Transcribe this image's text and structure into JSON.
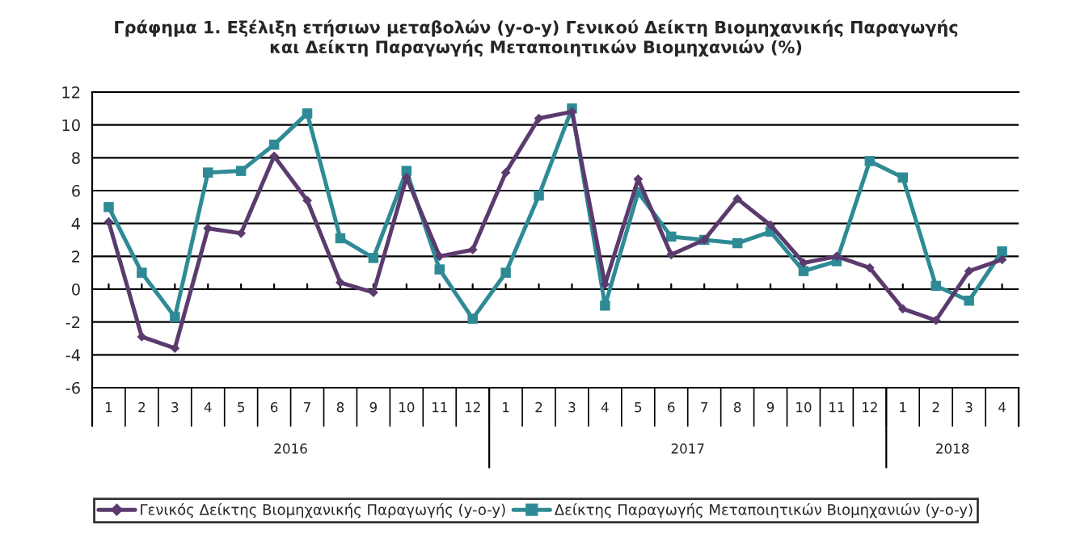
{
  "chart_data": {
    "type": "line",
    "title": "Γράφημα 1. Εξέλιξη ετήσιων μεταβολών (y-o-y) Γενικού Δείκτη Βιομηχανικής Παραγωγής\nκαι Δείκτη Παραγωγής Μεταποιητικών Βιομηχανιών (%)",
    "categories": [
      "1",
      "2",
      "3",
      "4",
      "5",
      "6",
      "7",
      "8",
      "9",
      "10",
      "11",
      "12",
      "1",
      "2",
      "3",
      "4",
      "5",
      "6",
      "7",
      "8",
      "9",
      "10",
      "11",
      "12",
      "1",
      "2",
      "3",
      "4"
    ],
    "annotations": [
      "2016",
      "2017",
      "2018"
    ],
    "series": [
      {
        "name": "Γενικός Δείκτης Βιομηχανικής Παραγωγής (y-o-y)",
        "color": "#5b3a6e",
        "marker": "diamond",
        "values": [
          4.1,
          -2.9,
          -3.6,
          3.7,
          3.4,
          8.1,
          5.4,
          0.4,
          -0.2,
          6.8,
          2.0,
          2.4,
          7.1,
          10.4,
          10.8,
          0.3,
          6.7,
          2.1,
          3.0,
          5.5,
          3.9,
          1.6,
          2.0,
          1.3,
          -1.2,
          -1.9,
          1.1,
          1.8
        ]
      },
      {
        "name": "Δείκτης Παραγωγής Μεταποιητικών Βιομηχανιών (y-o-y)",
        "color": "#2e8b95",
        "marker": "square",
        "values": [
          5.0,
          1.0,
          -1.7,
          7.1,
          7.2,
          8.8,
          10.7,
          3.1,
          1.9,
          7.2,
          1.2,
          -1.8,
          1.0,
          5.7,
          11.0,
          -1.0,
          5.9,
          3.2,
          3.0,
          2.8,
          3.5,
          1.1,
          1.7,
          7.8,
          6.8,
          0.2,
          -0.7,
          2.3
        ]
      }
    ],
    "ylim": [
      -6,
      12
    ],
    "yticks": [
      -6,
      -4,
      -2,
      0,
      2,
      4,
      6,
      8,
      10,
      12
    ],
    "grid": "y",
    "legend": "bottom",
    "line_style": "solid"
  }
}
